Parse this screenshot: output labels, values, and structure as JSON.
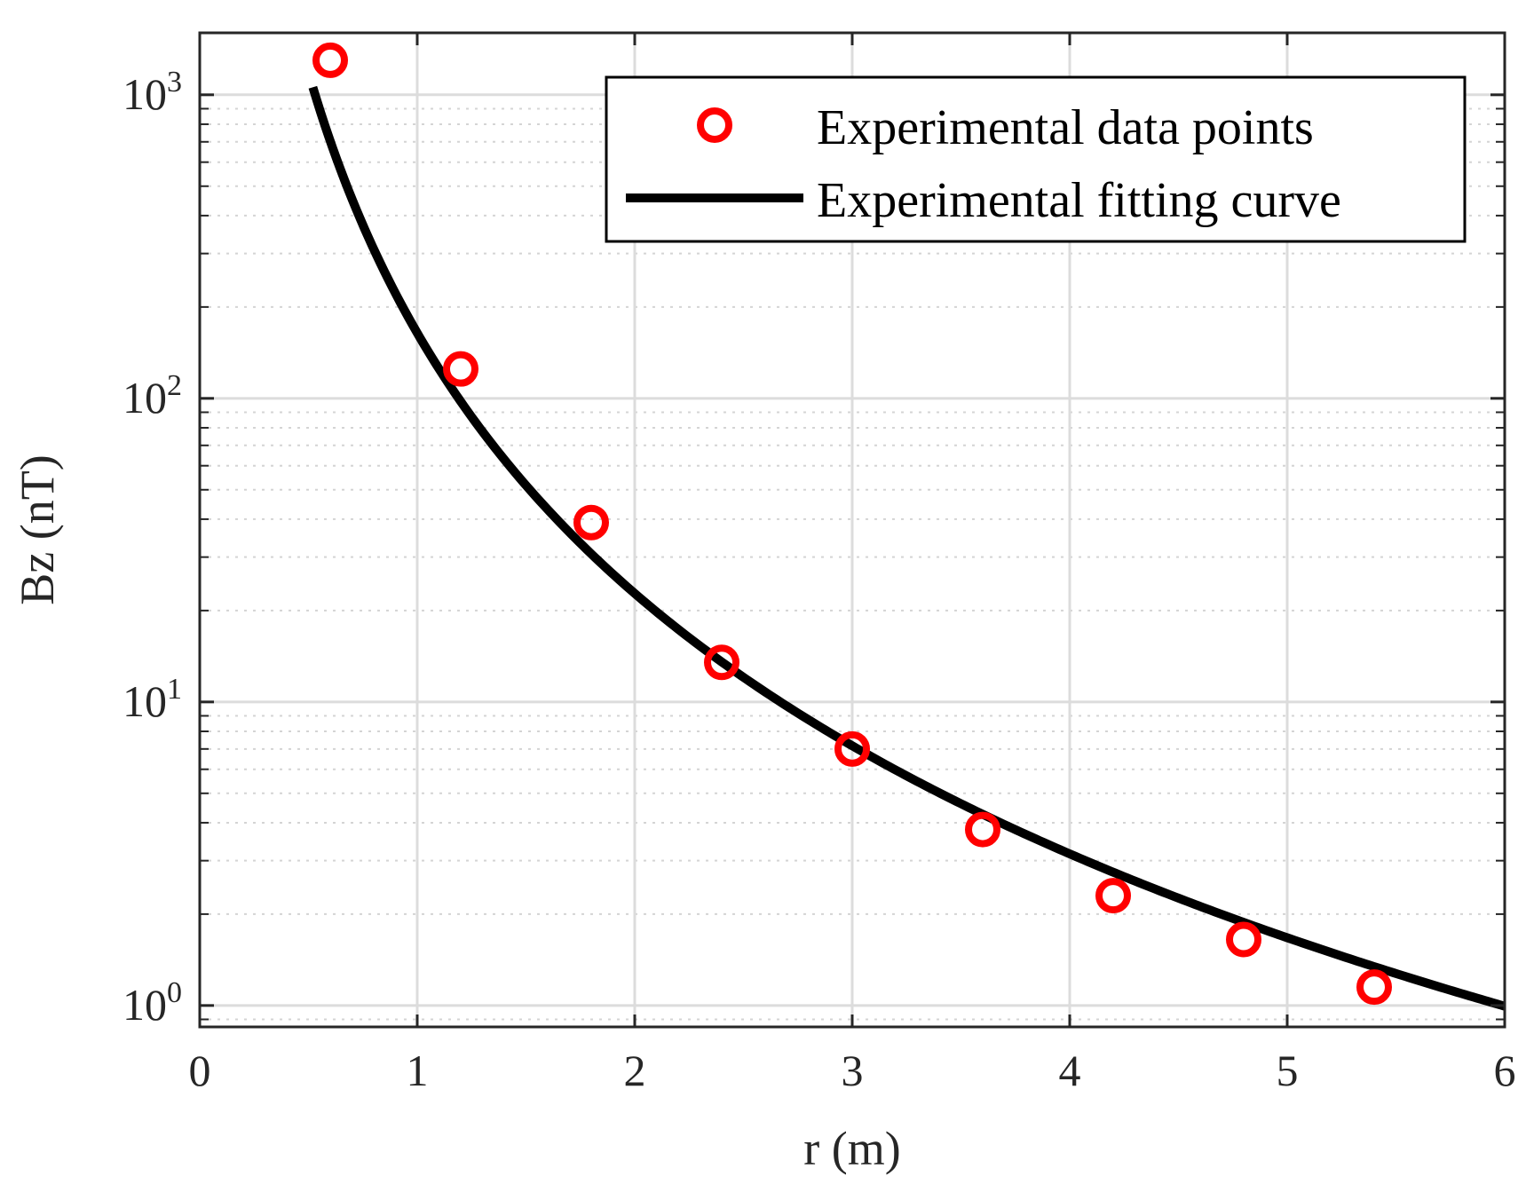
{
  "chart_data": {
    "type": "scatter",
    "title": "",
    "xlabel": "r (m)",
    "ylabel": "Bz (nT)",
    "xlim": [
      0,
      6
    ],
    "ylim": [
      0.85,
      1600
    ],
    "yscale": "log",
    "grid": true,
    "legend_position": "top-right",
    "x_ticks": [
      0,
      1,
      2,
      3,
      4,
      5,
      6
    ],
    "x_tick_labels": [
      "0",
      "1",
      "2",
      "3",
      "4",
      "5",
      "6"
    ],
    "y_ticks": [
      1,
      10,
      100,
      1000
    ],
    "y_tick_labels": [
      {
        "base": "10",
        "exp": "0"
      },
      {
        "base": "10",
        "exp": "1"
      },
      {
        "base": "10",
        "exp": "2"
      },
      {
        "base": "10",
        "exp": "3"
      }
    ],
    "series": [
      {
        "name": "Experimental data points",
        "kind": "scatter",
        "marker": "circle",
        "color": "#ff0000",
        "x": [
          0.6,
          1.2,
          1.8,
          2.4,
          3.0,
          3.6,
          4.2,
          4.8,
          5.4
        ],
        "y": [
          1300,
          125,
          39,
          13.5,
          7.0,
          3.8,
          2.3,
          1.65,
          1.15
        ]
      },
      {
        "name": "Experimental fitting curve",
        "kind": "line",
        "color": "#000000",
        "model": "y = a * x^(-b)",
        "params": {
          "a": 164.2,
          "b": 2.85
        },
        "x_range": [
          0.52,
          6.0
        ]
      }
    ]
  }
}
